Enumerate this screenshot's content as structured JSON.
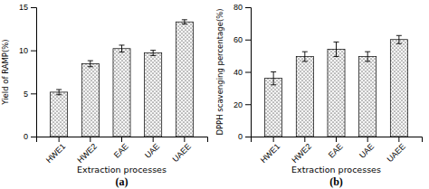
{
  "chart_data": [
    {
      "type": "bar",
      "categories": [
        "HWE1",
        "HWE2",
        "EAE",
        "UAE",
        "UAEE"
      ],
      "values": [
        5.15,
        8.45,
        10.2,
        9.7,
        13.3
      ],
      "errors": [
        0.3,
        0.35,
        0.4,
        0.3,
        0.25
      ],
      "ylabel": "Yield of RAMP(%)",
      "xlabel": "Extraction processes",
      "ylim": [
        0,
        15
      ],
      "yticks": [
        0,
        5,
        10,
        15
      ],
      "color": "#f5f5f5",
      "annotations": [
        "(a)"
      ]
    },
    {
      "type": "bar",
      "categories": [
        "HWE1",
        "HWE2",
        "EAE",
        "UAE",
        "UAEE"
      ],
      "values": [
        36.0,
        49.5,
        54.0,
        49.5,
        60.0
      ],
      "errors": [
        4.0,
        3.0,
        4.5,
        3.0,
        2.5
      ],
      "ylabel": "DPPH scavenging percentage(%)",
      "xlabel": "Extraction processes",
      "ylim": [
        0,
        80
      ],
      "yticks": [
        0,
        20,
        40,
        60,
        80
      ],
      "color": "#f5f5f5",
      "annotations": [
        "(b)"
      ]
    }
  ]
}
